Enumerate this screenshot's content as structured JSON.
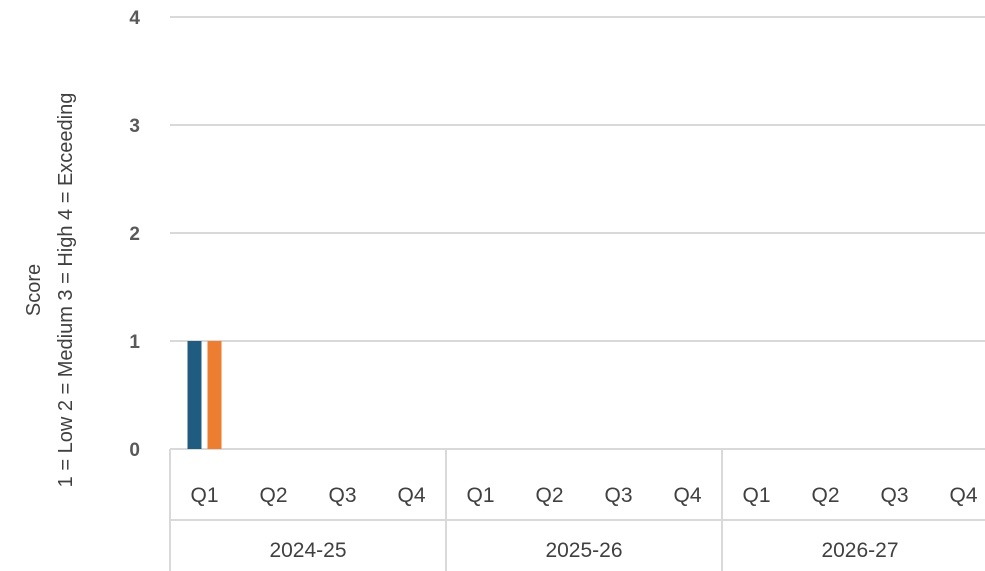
{
  "chart_data": {
    "type": "bar",
    "title": "",
    "ylabel_lines": [
      "Score",
      "1 = Low  2 = Medium  3 = High 4 = Exceeding"
    ],
    "ylim": [
      0,
      4
    ],
    "yticks": [
      "0",
      "1",
      "2",
      "3",
      "4"
    ],
    "grid": true,
    "legend": "none",
    "groups": [
      {
        "label": "2024-25",
        "categories": [
          "Q1",
          "Q2",
          "Q3",
          "Q4"
        ]
      },
      {
        "label": "2025-26",
        "categories": [
          "Q1",
          "Q2",
          "Q3",
          "Q4"
        ]
      },
      {
        "label": "2026-27",
        "categories": [
          "Q1",
          "Q2",
          "Q3",
          "Q4"
        ]
      }
    ],
    "series": [
      {
        "color": "#1f5c7f",
        "values": [
          1,
          null,
          null,
          null,
          null,
          null,
          null,
          null,
          null,
          null,
          null,
          null
        ]
      },
      {
        "color": "#ed7d31",
        "values": [
          1,
          null,
          null,
          null,
          null,
          null,
          null,
          null,
          null,
          null,
          null,
          null
        ]
      }
    ]
  }
}
